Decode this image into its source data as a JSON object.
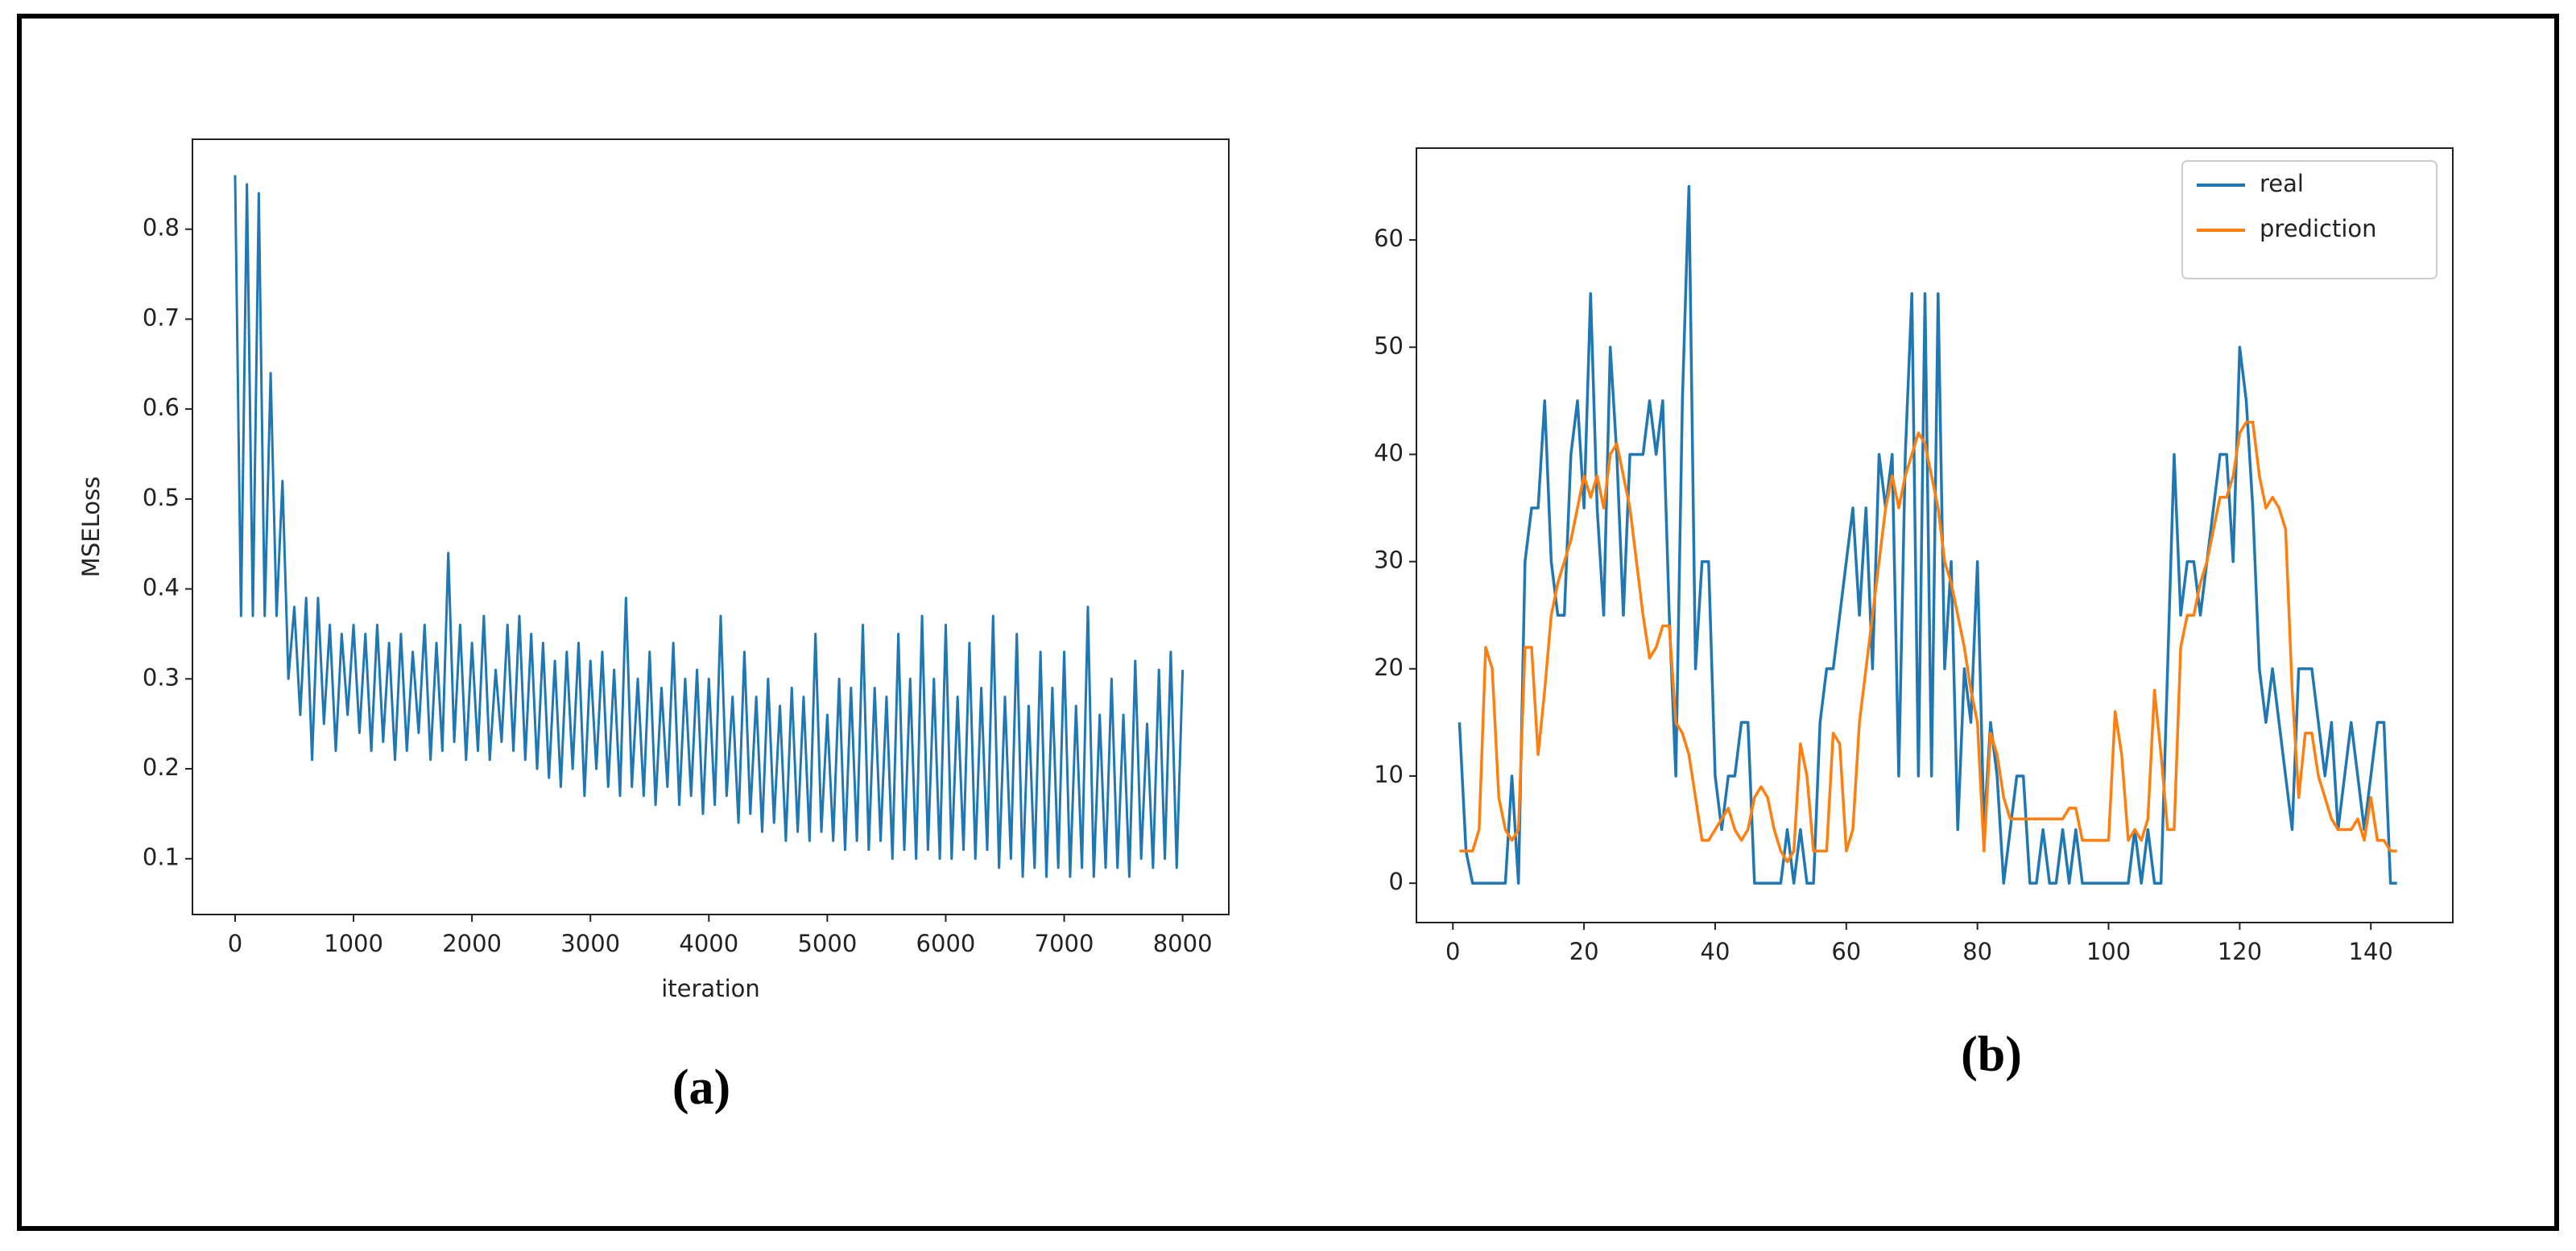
{
  "chart_data": [
    {
      "type": "line",
      "caption": "(a)",
      "x_label": "iteration",
      "y_label": "MSELoss",
      "xlim": [
        -360,
        8390
      ],
      "ylim": [
        0.038,
        0.9
      ],
      "xticks": [
        0,
        1000,
        2000,
        3000,
        4000,
        5000,
        6000,
        7000,
        8000
      ],
      "yticks": [
        0.1,
        0.2,
        0.3,
        0.4,
        0.5,
        0.6,
        0.7,
        0.8
      ],
      "x": [
        0,
        50,
        100,
        150,
        200,
        250,
        300,
        350,
        400,
        450,
        500,
        550,
        600,
        650,
        700,
        750,
        800,
        850,
        900,
        950,
        1000,
        1050,
        1100,
        1150,
        1200,
        1250,
        1300,
        1350,
        1400,
        1450,
        1500,
        1550,
        1600,
        1650,
        1700,
        1750,
        1800,
        1850,
        1900,
        1950,
        2000,
        2050,
        2100,
        2150,
        2200,
        2250,
        2300,
        2350,
        2400,
        2450,
        2500,
        2550,
        2600,
        2650,
        2700,
        2750,
        2800,
        2850,
        2900,
        2950,
        3000,
        3050,
        3100,
        3150,
        3200,
        3250,
        3300,
        3350,
        3400,
        3450,
        3500,
        3550,
        3600,
        3650,
        3700,
        3750,
        3800,
        3850,
        3900,
        3950,
        4000,
        4050,
        4100,
        4150,
        4200,
        4250,
        4300,
        4350,
        4400,
        4450,
        4500,
        4550,
        4600,
        4650,
        4700,
        4750,
        4800,
        4850,
        4900,
        4950,
        5000,
        5050,
        5100,
        5150,
        5200,
        5250,
        5300,
        5350,
        5400,
        5450,
        5500,
        5550,
        5600,
        5650,
        5700,
        5750,
        5800,
        5850,
        5900,
        5950,
        6000,
        6050,
        6100,
        6150,
        6200,
        6250,
        6300,
        6350,
        6400,
        6450,
        6500,
        6550,
        6600,
        6650,
        6700,
        6750,
        6800,
        6850,
        6900,
        6950,
        7000,
        7050,
        7100,
        7150,
        7200,
        7250,
        7300,
        7350,
        7400,
        7450,
        7500,
        7550,
        7600,
        7650,
        7700,
        7750,
        7800,
        7850,
        7900,
        7950,
        8000
      ],
      "series": [
        {
          "color": "#1f77b4",
          "values": [
            0.86,
            0.37,
            0.85,
            0.37,
            0.84,
            0.37,
            0.64,
            0.37,
            0.52,
            0.3,
            0.38,
            0.26,
            0.39,
            0.21,
            0.39,
            0.25,
            0.36,
            0.22,
            0.35,
            0.26,
            0.36,
            0.24,
            0.35,
            0.22,
            0.36,
            0.23,
            0.34,
            0.21,
            0.35,
            0.22,
            0.33,
            0.24,
            0.36,
            0.21,
            0.34,
            0.22,
            0.44,
            0.23,
            0.36,
            0.21,
            0.34,
            0.22,
            0.37,
            0.21,
            0.31,
            0.23,
            0.36,
            0.22,
            0.37,
            0.21,
            0.35,
            0.2,
            0.34,
            0.19,
            0.32,
            0.18,
            0.33,
            0.2,
            0.34,
            0.17,
            0.32,
            0.2,
            0.33,
            0.18,
            0.31,
            0.17,
            0.39,
            0.18,
            0.3,
            0.17,
            0.33,
            0.16,
            0.29,
            0.18,
            0.34,
            0.16,
            0.3,
            0.17,
            0.31,
            0.15,
            0.3,
            0.16,
            0.37,
            0.17,
            0.28,
            0.14,
            0.33,
            0.15,
            0.28,
            0.13,
            0.3,
            0.14,
            0.27,
            0.12,
            0.29,
            0.13,
            0.28,
            0.12,
            0.35,
            0.13,
            0.26,
            0.12,
            0.3,
            0.11,
            0.29,
            0.12,
            0.36,
            0.11,
            0.29,
            0.12,
            0.28,
            0.1,
            0.35,
            0.11,
            0.3,
            0.1,
            0.37,
            0.11,
            0.3,
            0.1,
            0.36,
            0.1,
            0.28,
            0.11,
            0.34,
            0.1,
            0.29,
            0.11,
            0.37,
            0.09,
            0.28,
            0.1,
            0.35,
            0.08,
            0.27,
            0.09,
            0.33,
            0.08,
            0.29,
            0.09,
            0.33,
            0.08,
            0.27,
            0.09,
            0.38,
            0.08,
            0.26,
            0.09,
            0.3,
            0.09,
            0.26,
            0.08,
            0.32,
            0.1,
            0.25,
            0.09,
            0.31,
            0.1,
            0.33,
            0.09,
            0.31
          ]
        }
      ]
    },
    {
      "type": "line",
      "caption": "(b)",
      "legend": "upper right",
      "xlim": [
        -5.56,
        152.5
      ],
      "ylim": [
        -3.67,
        68.57
      ],
      "xticks": [
        0,
        20,
        40,
        60,
        80,
        100,
        120,
        140
      ],
      "yticks": [
        0,
        10,
        20,
        30,
        40,
        50,
        60
      ],
      "x": [
        1,
        2,
        3,
        4,
        5,
        6,
        7,
        8,
        9,
        10,
        11,
        12,
        13,
        14,
        15,
        16,
        17,
        18,
        19,
        20,
        21,
        22,
        23,
        24,
        25,
        26,
        27,
        28,
        29,
        30,
        31,
        32,
        33,
        34,
        35,
        36,
        37,
        38,
        39,
        40,
        41,
        42,
        43,
        44,
        45,
        46,
        47,
        48,
        49,
        50,
        51,
        52,
        53,
        54,
        55,
        56,
        57,
        58,
        59,
        60,
        61,
        62,
        63,
        64,
        65,
        66,
        67,
        68,
        69,
        70,
        71,
        72,
        73,
        74,
        75,
        76,
        77,
        78,
        79,
        80,
        81,
        82,
        83,
        84,
        85,
        86,
        87,
        88,
        89,
        90,
        91,
        92,
        93,
        94,
        95,
        96,
        97,
        98,
        99,
        100,
        101,
        102,
        103,
        104,
        105,
        106,
        107,
        108,
        109,
        110,
        111,
        112,
        113,
        114,
        115,
        116,
        117,
        118,
        119,
        120,
        121,
        122,
        123,
        124,
        125,
        126,
        127,
        128,
        129,
        130,
        131,
        132,
        133,
        134,
        135,
        136,
        137,
        138,
        139,
        140,
        141,
        142,
        143,
        144
      ],
      "series": [
        {
          "name": "real",
          "color": "#1f77b4",
          "values": [
            15,
            3,
            0,
            0,
            0,
            0,
            0,
            0,
            10,
            0,
            30,
            35,
            35,
            45,
            30,
            25,
            25,
            40,
            45,
            35,
            55,
            35,
            25,
            50,
            40,
            25,
            40,
            40,
            40,
            45,
            40,
            45,
            25,
            10,
            45,
            65,
            20,
            30,
            30,
            10,
            5,
            10,
            10,
            15,
            15,
            0,
            0,
            0,
            0,
            0,
            5,
            0,
            5,
            0,
            0,
            15,
            20,
            20,
            25,
            30,
            35,
            25,
            35,
            20,
            40,
            35,
            40,
            10,
            40,
            55,
            10,
            55,
            10,
            55,
            20,
            30,
            5,
            20,
            15,
            30,
            5,
            15,
            10,
            0,
            5,
            10,
            10,
            0,
            0,
            5,
            0,
            0,
            5,
            0,
            5,
            0,
            0,
            0,
            0,
            0,
            0,
            0,
            0,
            5,
            0,
            5,
            0,
            0,
            20,
            40,
            25,
            30,
            30,
            25,
            30,
            35,
            40,
            40,
            30,
            50,
            45,
            35,
            20,
            15,
            20,
            15,
            10,
            5,
            20,
            20,
            20,
            15,
            10,
            15,
            5,
            10,
            15,
            10,
            5,
            10,
            15,
            15,
            0,
            0
          ]
        },
        {
          "name": "prediction",
          "color": "#ff7f0e",
          "values": [
            3,
            3,
            3,
            5,
            22,
            20,
            8,
            5,
            4,
            5,
            22,
            22,
            12,
            18,
            25,
            28,
            30,
            32,
            35,
            38,
            36,
            38,
            35,
            40,
            41,
            38,
            35,
            30,
            25,
            21,
            22,
            24,
            24,
            15,
            14,
            12,
            8,
            4,
            4,
            5,
            6,
            7,
            5,
            4,
            5,
            8,
            9,
            8,
            5,
            3,
            2,
            3,
            13,
            10,
            3,
            3,
            3,
            14,
            13,
            3,
            5,
            15,
            20,
            25,
            30,
            35,
            38,
            35,
            38,
            40,
            42,
            41,
            38,
            35,
            30,
            28,
            25,
            22,
            18,
            15,
            3,
            14,
            12,
            8,
            6,
            6,
            6,
            6,
            6,
            6,
            6,
            6,
            6,
            7,
            7,
            4,
            4,
            4,
            4,
            4,
            16,
            12,
            4,
            5,
            4,
            6,
            18,
            12,
            5,
            5,
            22,
            25,
            25,
            28,
            30,
            33,
            36,
            36,
            38,
            42,
            43,
            43,
            38,
            35,
            36,
            35,
            33,
            18,
            8,
            14,
            14,
            10,
            8,
            6,
            5,
            5,
            5,
            6,
            4,
            8,
            4,
            4,
            3,
            3
          ]
        }
      ]
    }
  ]
}
